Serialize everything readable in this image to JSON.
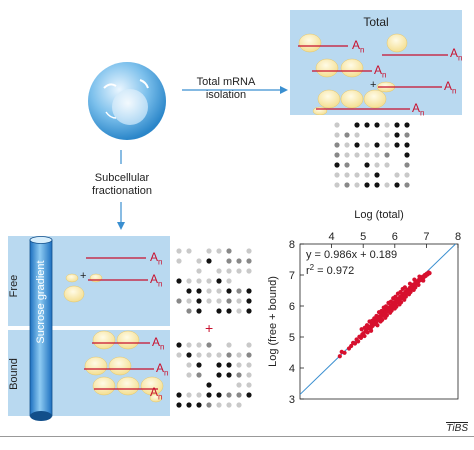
{
  "cell_label": "",
  "arrow_top": {
    "line1": "Total mRNA",
    "line2": "isolation"
  },
  "arrow_left": {
    "line1": "Subcellular",
    "line2": "fractionation"
  },
  "total_panel": {
    "title": "Total"
  },
  "poly_a": {
    "base": "A",
    "sub": "n"
  },
  "plus_sign": "+",
  "gradient": {
    "label": "Sucrose gradient",
    "free": "Free",
    "bound": "Bound"
  },
  "footer": {
    "journal": "TiBS"
  },
  "chart_data": {
    "type": "scatter",
    "xlabel": "Log (total)",
    "ylabel": "Log (free + bound)",
    "xlim": [
      3,
      8
    ],
    "ylim": [
      3,
      8
    ],
    "xticks": [
      "4",
      "5",
      "6",
      "7",
      "8"
    ],
    "yticks": [
      "3",
      "4",
      "5",
      "6",
      "7",
      "8"
    ],
    "fit_line": {
      "slope": 0.986,
      "intercept": 0.189
    },
    "annotation": {
      "equation": "y = 0.986x + 0.189",
      "r2_prefix": "r",
      "r2_sup": "2",
      "r2_value": " = 0.972"
    },
    "point_color": "#d7102e",
    "line_color": "#3a8fd0",
    "grid": false,
    "points": [
      [
        4.26,
        4.38
      ],
      [
        4.32,
        4.52
      ],
      [
        4.41,
        4.49
      ],
      [
        4.55,
        4.63
      ],
      [
        4.62,
        4.71
      ],
      [
        4.68,
        4.81
      ],
      [
        4.74,
        4.79
      ],
      [
        4.79,
        4.92
      ],
      [
        4.84,
        4.86
      ],
      [
        4.88,
        5.01
      ],
      [
        4.93,
        4.97
      ],
      [
        4.97,
        5.08
      ],
      [
        5.01,
        5.12
      ],
      [
        5.04,
        5.03
      ],
      [
        5.08,
        5.19
      ],
      [
        5.11,
        5.24
      ],
      [
        5.14,
        5.15
      ],
      [
        5.18,
        5.29
      ],
      [
        5.21,
        5.33
      ],
      [
        5.24,
        5.27
      ],
      [
        5.27,
        5.41
      ],
      [
        5.3,
        5.36
      ],
      [
        5.33,
        5.47
      ],
      [
        5.36,
        5.42
      ],
      [
        5.39,
        5.55
      ],
      [
        5.42,
        5.49
      ],
      [
        5.45,
        5.61
      ],
      [
        5.48,
        5.57
      ],
      [
        5.51,
        5.66
      ],
      [
        5.54,
        5.62
      ],
      [
        5.57,
        5.73
      ],
      [
        5.6,
        5.68
      ],
      [
        5.63,
        5.79
      ],
      [
        5.66,
        5.74
      ],
      [
        5.69,
        5.85
      ],
      [
        5.72,
        5.79
      ],
      [
        5.75,
        5.9
      ],
      [
        5.78,
        5.86
      ],
      [
        5.81,
        5.95
      ],
      [
        5.84,
        5.91
      ],
      [
        5.87,
        6.01
      ],
      [
        5.9,
        5.96
      ],
      [
        5.93,
        6.06
      ],
      [
        5.96,
        6.02
      ],
      [
        5.99,
        6.12
      ],
      [
        6.02,
        6.07
      ],
      [
        6.05,
        6.18
      ],
      [
        6.08,
        6.13
      ],
      [
        6.11,
        6.24
      ],
      [
        6.14,
        6.19
      ],
      [
        6.17,
        6.29
      ],
      [
        6.2,
        6.25
      ],
      [
        6.23,
        6.35
      ],
      [
        6.26,
        6.31
      ],
      [
        6.29,
        6.41
      ],
      [
        6.32,
        6.36
      ],
      [
        6.35,
        6.47
      ],
      [
        6.38,
        6.42
      ],
      [
        6.41,
        6.52
      ],
      [
        6.44,
        6.48
      ],
      [
        6.47,
        6.58
      ],
      [
        6.5,
        6.54
      ],
      [
        6.53,
        6.63
      ],
      [
        6.56,
        6.6
      ],
      [
        6.59,
        6.69
      ],
      [
        6.62,
        6.66
      ],
      [
        6.65,
        6.74
      ],
      [
        6.68,
        6.72
      ],
      [
        6.71,
        6.8
      ],
      [
        6.74,
        6.78
      ],
      [
        6.77,
        6.85
      ],
      [
        6.8,
        6.83
      ],
      [
        6.83,
        6.9
      ],
      [
        6.86,
        6.88
      ],
      [
        6.89,
        6.95
      ],
      [
        6.92,
        6.93
      ],
      [
        6.95,
        7.0
      ],
      [
        6.98,
        6.97
      ],
      [
        7.01,
        7.04
      ],
      [
        7.04,
        7.02
      ],
      [
        7.07,
        7.08
      ],
      [
        7.1,
        7.06
      ],
      [
        5.2,
        5.5
      ],
      [
        5.35,
        5.6
      ],
      [
        5.5,
        5.8
      ],
      [
        5.65,
        5.95
      ],
      [
        5.8,
        6.1
      ],
      [
        5.95,
        6.25
      ],
      [
        6.1,
        6.4
      ],
      [
        6.25,
        6.55
      ],
      [
        5.25,
        5.2
      ],
      [
        5.45,
        5.38
      ],
      [
        5.6,
        5.55
      ],
      [
        5.75,
        5.7
      ],
      [
        5.9,
        5.85
      ],
      [
        6.05,
        5.98
      ],
      [
        6.2,
        6.12
      ],
      [
        6.35,
        6.3
      ],
      [
        6.5,
        6.45
      ],
      [
        6.65,
        6.6
      ],
      [
        4.95,
        5.25
      ],
      [
        5.05,
        5.3
      ],
      [
        5.55,
        5.5
      ],
      [
        5.7,
        5.62
      ],
      [
        5.85,
        5.78
      ],
      [
        6.0,
        5.92
      ],
      [
        6.15,
        6.05
      ],
      [
        6.3,
        6.2
      ],
      [
        6.45,
        6.38
      ],
      [
        6.6,
        6.52
      ],
      [
        6.75,
        6.68
      ],
      [
        6.9,
        6.82
      ],
      [
        5.12,
        5.38
      ],
      [
        5.28,
        5.52
      ],
      [
        5.42,
        5.68
      ],
      [
        5.58,
        5.84
      ],
      [
        5.72,
        5.99
      ],
      [
        5.88,
        6.14
      ],
      [
        6.02,
        6.3
      ],
      [
        6.18,
        6.45
      ],
      [
        6.32,
        6.6
      ],
      [
        6.48,
        6.72
      ],
      [
        6.62,
        6.85
      ],
      [
        6.78,
        6.95
      ]
    ]
  }
}
